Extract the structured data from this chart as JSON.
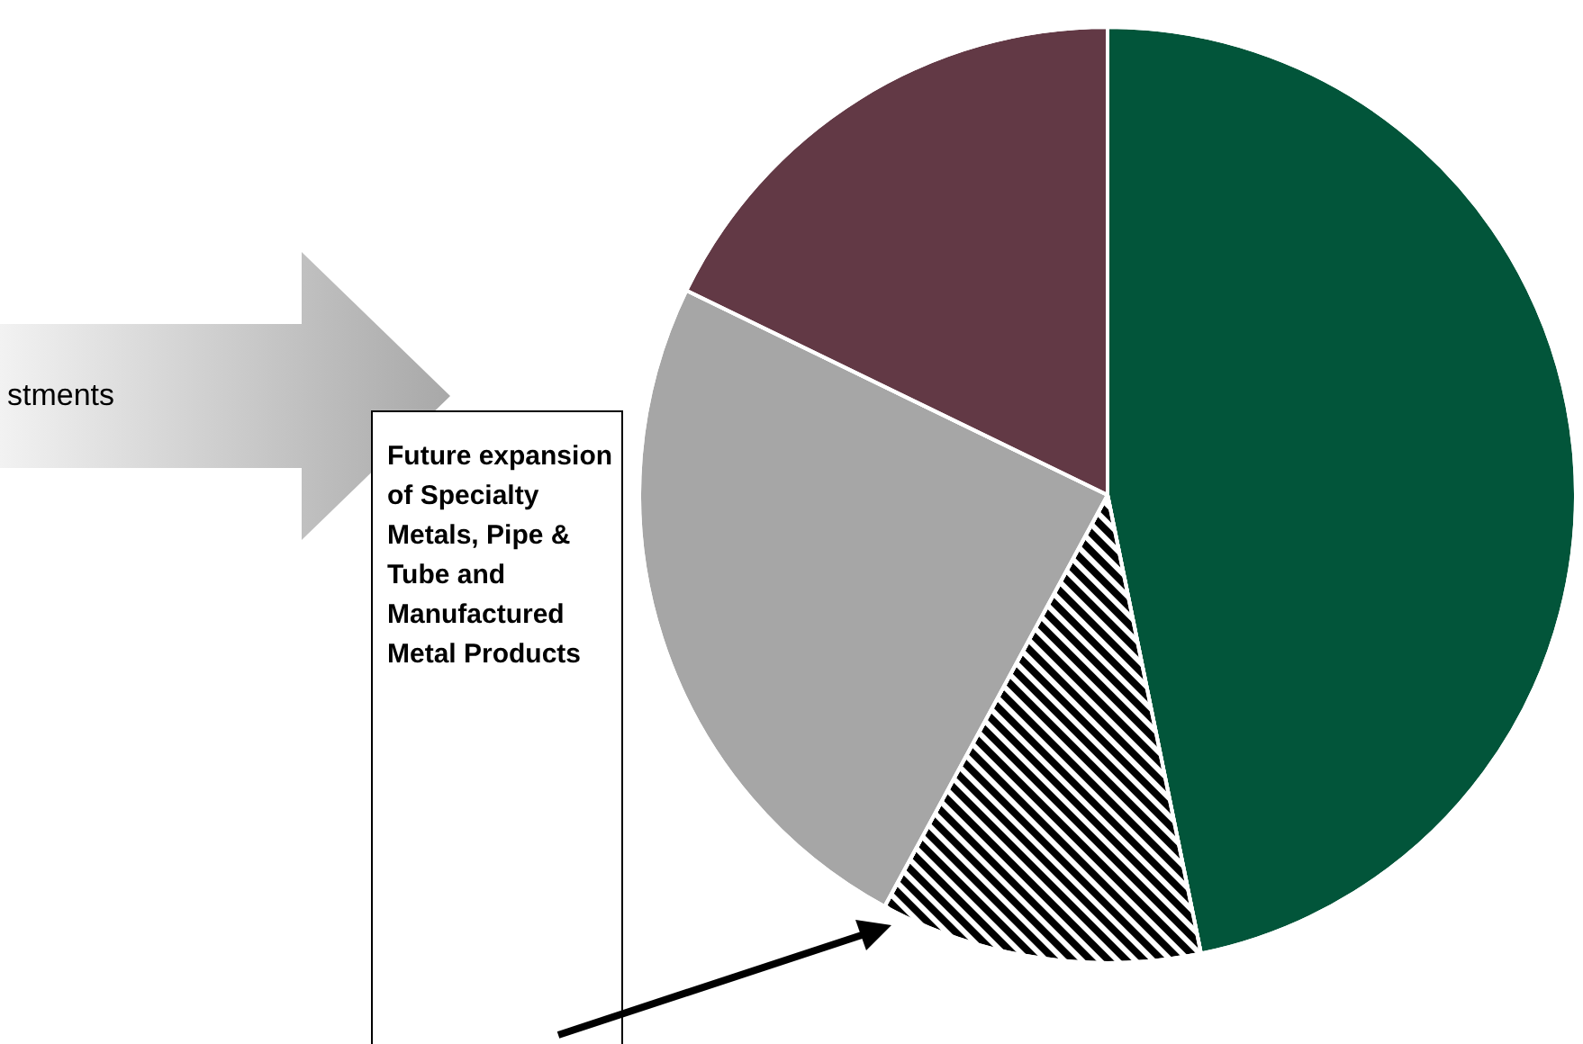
{
  "chart_data": {
    "type": "pie",
    "categories": [
      null,
      null,
      null,
      null
    ],
    "values": [
      46.8,
      11.1,
      24.3,
      17.8
    ],
    "colors": [
      "#02553a",
      "#000000",
      "#a6a6a6",
      "#623945"
    ],
    "annotations": [
      "stments",
      "Future expansion of Specialty Metals, Pipe & Tube and Manufactured Metal Products"
    ]
  }
}
